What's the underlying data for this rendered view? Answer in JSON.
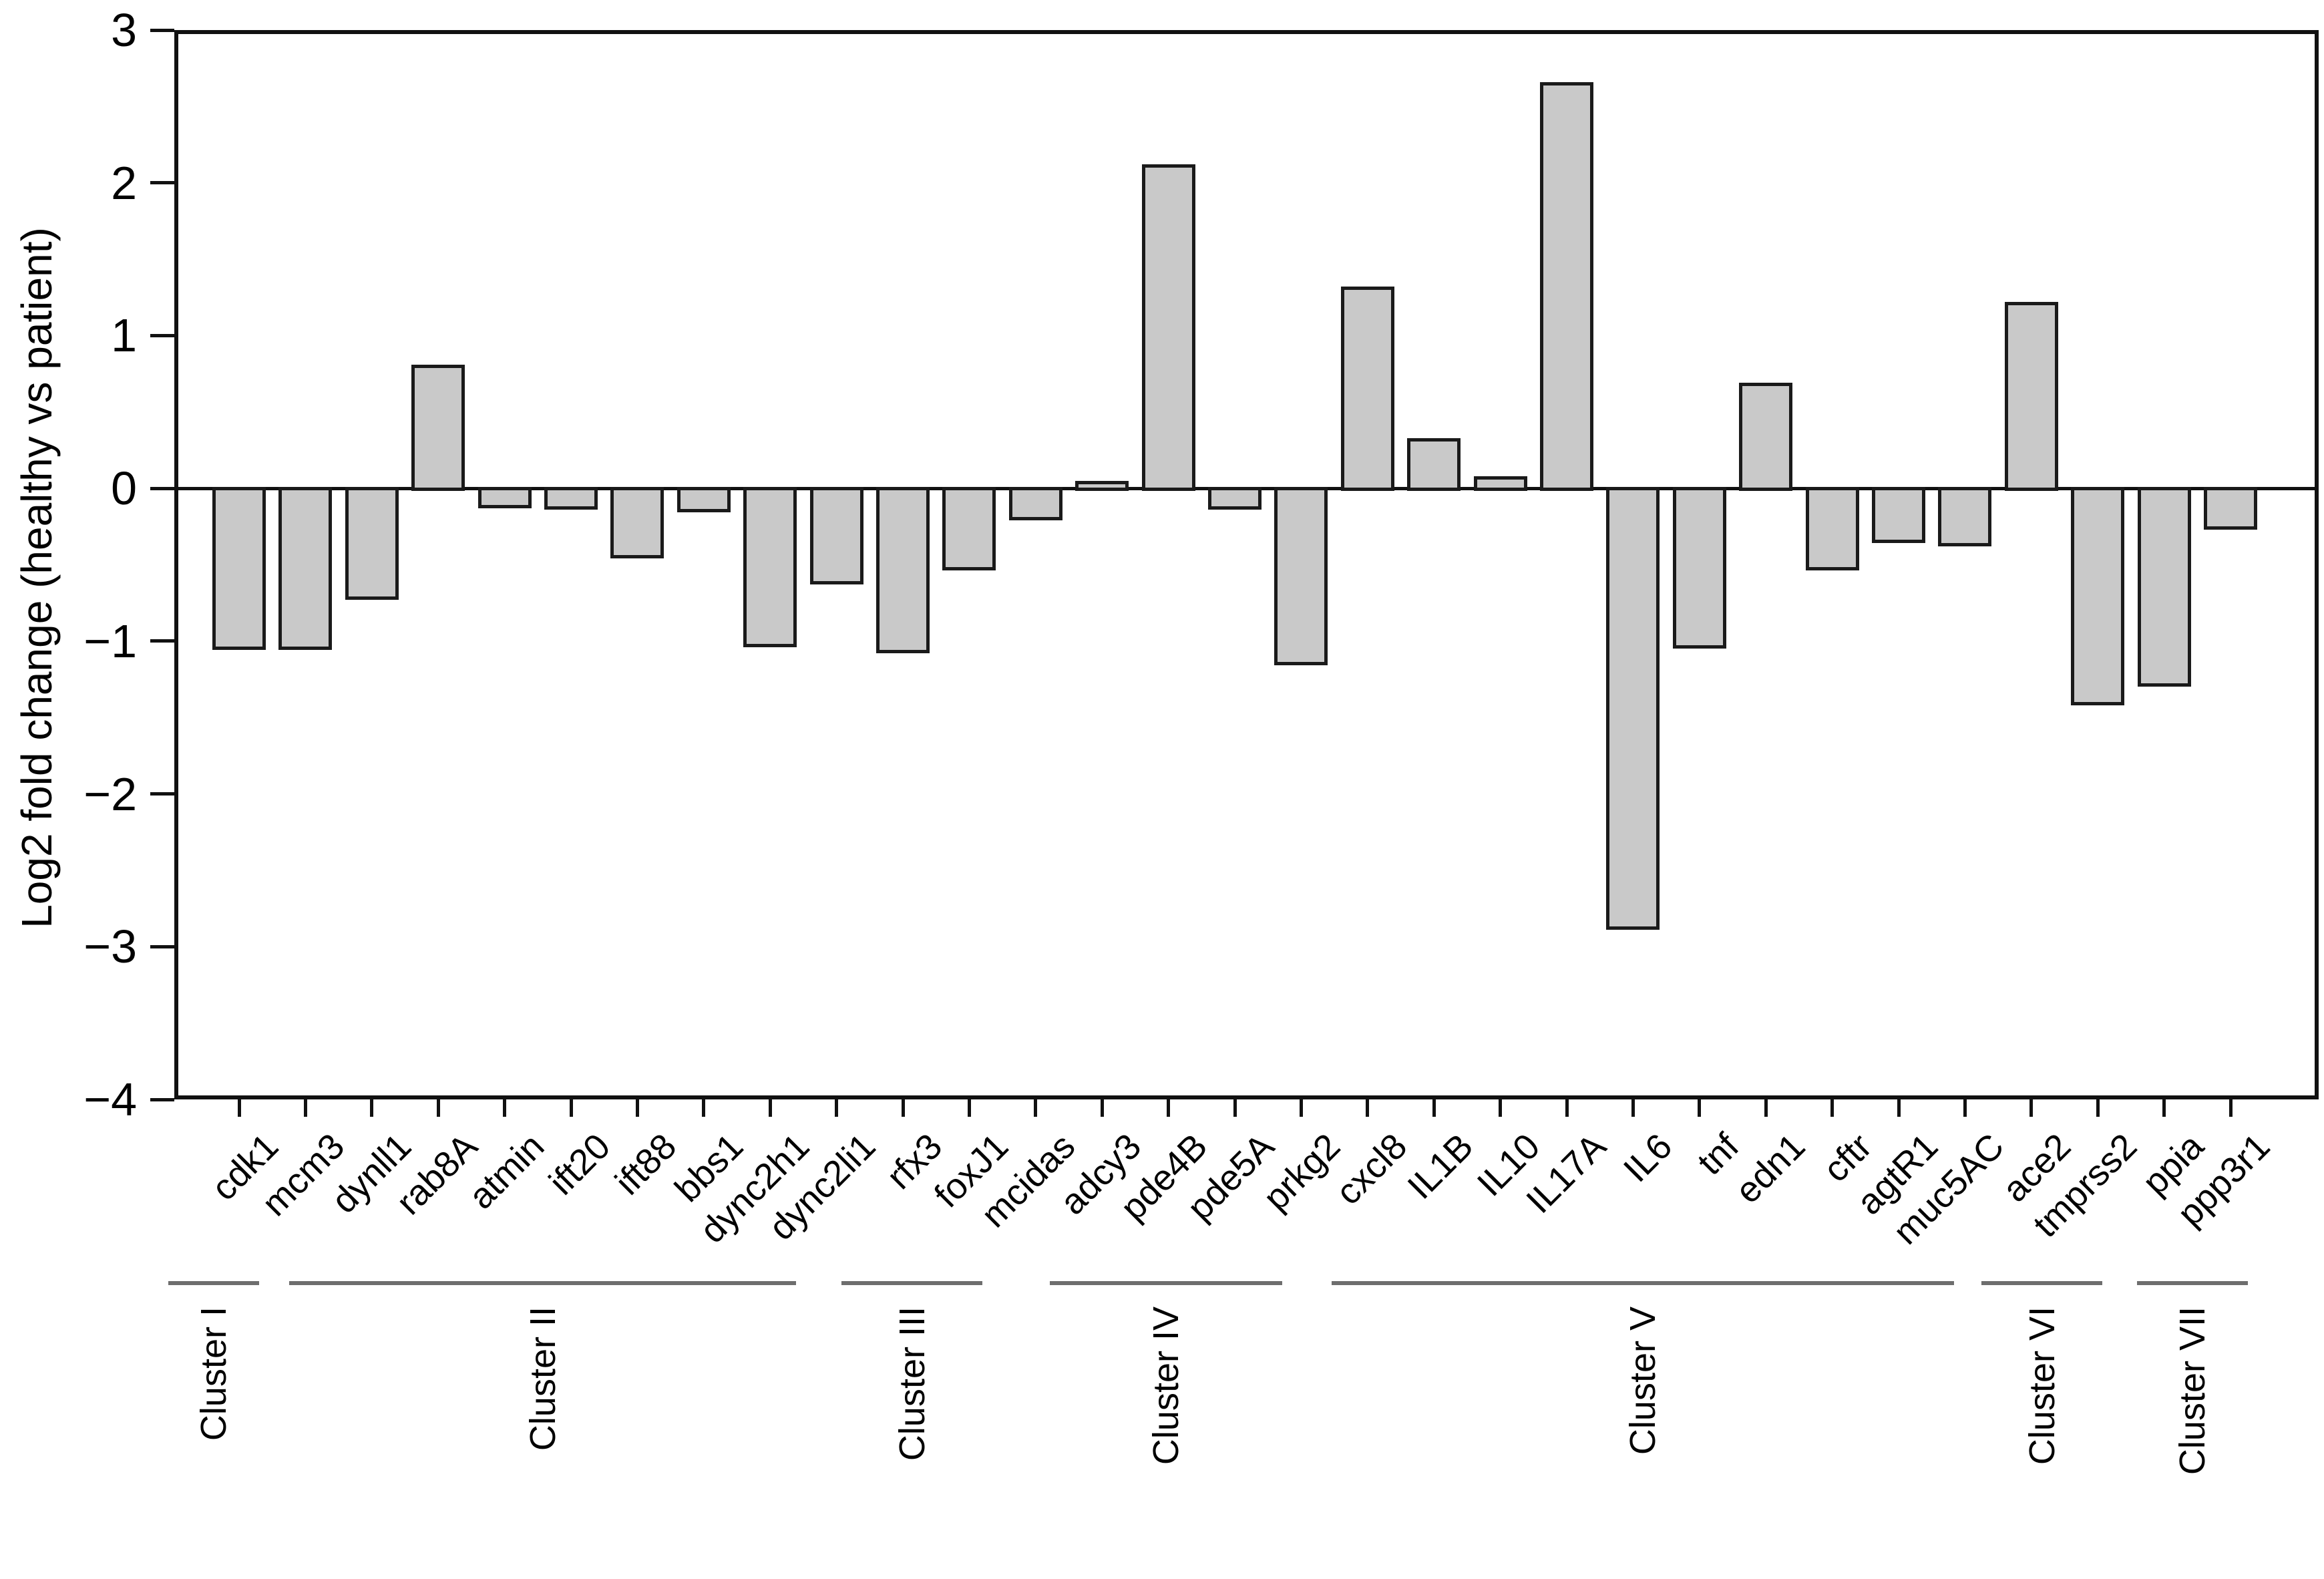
{
  "figure": {
    "background_color": "#ffffff",
    "bar_fill_color": "#c9c9c9",
    "bar_edge_color": "#1a1a1a",
    "axis_color": "#111111",
    "bracket_color": "#6e6e6e",
    "text_color": "#000000"
  },
  "chart_data": {
    "type": "bar",
    "title": "",
    "xlabel": "",
    "ylabel": "Log2 fold change (healthy vs patient)",
    "ylim": [
      -4,
      3
    ],
    "grid": false,
    "legend": null,
    "ytick_values": [
      3,
      2,
      1,
      0,
      -1,
      -2,
      -3,
      -4
    ],
    "ytick_labels": [
      "3",
      "2",
      "1",
      "0",
      "−1",
      "−2",
      "−3",
      "−4"
    ],
    "categories": [
      "cdk1",
      "mcm3",
      "dynll1",
      "rab8A",
      "atmin",
      "ift20",
      "ift88",
      "bbs1",
      "dync2h1",
      "dync2li1",
      "rfx3",
      "foxJ1",
      "mcidas",
      "adcy3",
      "pde4B",
      "pde5A",
      "prkg2",
      "cxcl8",
      "IL1B",
      "IL10",
      "IL17A",
      "IL6",
      "tnf",
      "edn1",
      "cftr",
      "agtR1",
      "muc5AC",
      "ace2",
      "tmprss2",
      "ppia",
      "ppp3r1"
    ],
    "values": [
      -1.05,
      -1.05,
      -0.72,
      0.81,
      -0.12,
      -0.13,
      -0.45,
      -0.15,
      -1.03,
      -0.62,
      -1.07,
      -0.53,
      -0.2,
      0.05,
      2.12,
      -0.13,
      -1.15,
      1.32,
      0.33,
      0.08,
      2.66,
      -2.88,
      -1.04,
      0.69,
      -0.53,
      -0.35,
      -0.37,
      1.22,
      -1.41,
      -1.29,
      -0.26
    ],
    "clusters": [
      {
        "label": "Cluster I",
        "first_gene": "cdk1",
        "last_gene": "mcm3",
        "gene_span": [
          0,
          1
        ]
      },
      {
        "label": "Cluster II",
        "first_gene": "dynll1",
        "last_gene": "dync2li1",
        "gene_span": [
          2,
          9
        ]
      },
      {
        "label": "Cluster III",
        "first_gene": "rfx3",
        "last_gene": "mcidas",
        "gene_span": [
          10,
          12
        ]
      },
      {
        "label": "Cluster IV",
        "first_gene": "adcy3",
        "last_gene": "prkg2",
        "gene_span": [
          13,
          16
        ]
      },
      {
        "label": "Cluster V",
        "first_gene": "cxcl8",
        "last_gene": "muc5AC",
        "gene_span": [
          17,
          26
        ]
      },
      {
        "label": "Cluster VI",
        "first_gene": "ace2",
        "last_gene": "tmprss2",
        "gene_span": [
          27,
          28
        ]
      },
      {
        "label": "Cluster VII",
        "first_gene": "ppia",
        "last_gene": "ppp3r1",
        "gene_span": [
          29,
          30
        ]
      }
    ]
  }
}
